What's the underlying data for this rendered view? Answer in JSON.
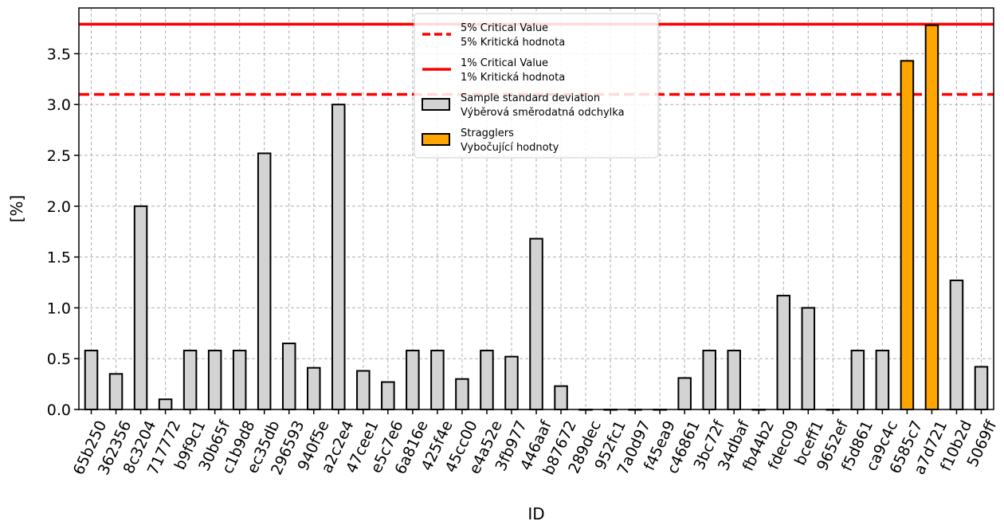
{
  "chart_data": {
    "type": "bar",
    "title": "",
    "xlabel": "ID",
    "ylabel": "[%]",
    "ylim": [
      0,
      3.95
    ],
    "yticks": [
      "0.0",
      "0.5",
      "1.0",
      "1.5",
      "2.0",
      "2.5",
      "3.0",
      "3.5"
    ],
    "grid": true,
    "legend_position": "top-center",
    "categories": [
      "65b250",
      "362356",
      "8c3204",
      "717772",
      "b9f9c1",
      "30b65f",
      "c1b9d8",
      "ec35db",
      "296593",
      "940f5e",
      "a2c2e4",
      "47cee1",
      "e5c7e6",
      "6a816e",
      "425f4e",
      "45cc00",
      "e4a52e",
      "3fb977",
      "446aaf",
      "b87672",
      "289dec",
      "952fc1",
      "7a0d97",
      "f45ea9",
      "c46861",
      "3bc72f",
      "34dbaf",
      "fb44b2",
      "fdec09",
      "bceff1",
      "9652ef",
      "f5d861",
      "ca9c4c",
      "6585c7",
      "a7d721",
      "f10b2d",
      "5069ff"
    ],
    "series": [
      {
        "name": "Sample standard deviation Výběrová směrodatná odchylka",
        "color": "#d3d3d3",
        "values": [
          0.58,
          0.35,
          2.0,
          0.1,
          0.58,
          0.58,
          0.58,
          2.52,
          0.65,
          0.41,
          3.0,
          0.38,
          0.27,
          0.58,
          0.58,
          0.3,
          0.58,
          0.52,
          1.68,
          0.23,
          0.0,
          0.0,
          0.0,
          0.0,
          0.31,
          0.58,
          0.58,
          0.0,
          1.12,
          1.0,
          0.0,
          0.58,
          0.58,
          null,
          null,
          1.27,
          0.42
        ]
      },
      {
        "name": "Stragglers Vybočující hodnoty",
        "color": "#ffa500",
        "values": [
          null,
          null,
          null,
          null,
          null,
          null,
          null,
          null,
          null,
          null,
          null,
          null,
          null,
          null,
          null,
          null,
          null,
          null,
          null,
          null,
          null,
          null,
          null,
          null,
          null,
          null,
          null,
          null,
          null,
          null,
          null,
          null,
          null,
          3.43,
          3.78,
          null,
          null
        ]
      }
    ],
    "reference_lines": [
      {
        "value": 3.1,
        "style": "dashed",
        "color": "#ff0000",
        "label_1": "5% Critical Value",
        "label_2": "5% Kritická hodnota"
      },
      {
        "value": 3.79,
        "style": "solid",
        "color": "#ff0000",
        "label_1": "1% Critical Value",
        "label_2": "1% Kritická hodnota"
      }
    ],
    "legend": [
      {
        "kind": "dashed-line",
        "color": "#ff0000",
        "line1": "5% Critical Value",
        "line2": "5% Kritická hodnota"
      },
      {
        "kind": "solid-line",
        "color": "#ff0000",
        "line1": "1% Critical Value",
        "line2": "1% Kritická hodnota"
      },
      {
        "kind": "box",
        "color": "#d3d3d3",
        "line1": "Sample standard deviation",
        "line2": "Výběrová směrodatná odchylka"
      },
      {
        "kind": "box",
        "color": "#ffa500",
        "line1": "Stragglers",
        "line2": "Vybočující hodnoty"
      }
    ]
  }
}
